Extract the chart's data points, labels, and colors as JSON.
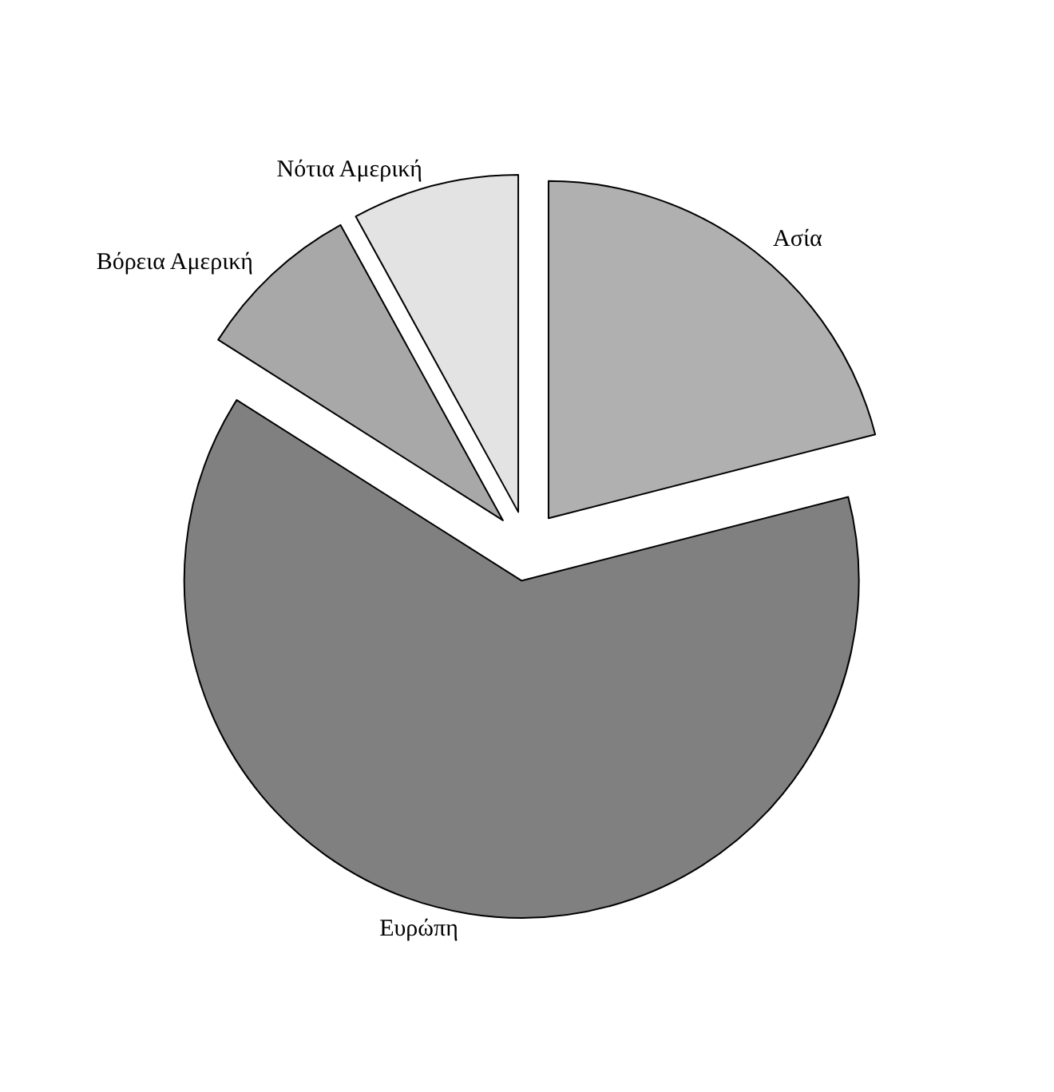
{
  "chart_data": {
    "type": "pie",
    "categories": [
      "Ασία",
      "Ευρώπη",
      "Βόρεια Αμερική",
      "Νότια Αμερική"
    ],
    "values": [
      21,
      63,
      8,
      8
    ],
    "colors": [
      "#b0b0b0",
      "#808080",
      "#a8a8a8",
      "#e3e3e3"
    ]
  }
}
